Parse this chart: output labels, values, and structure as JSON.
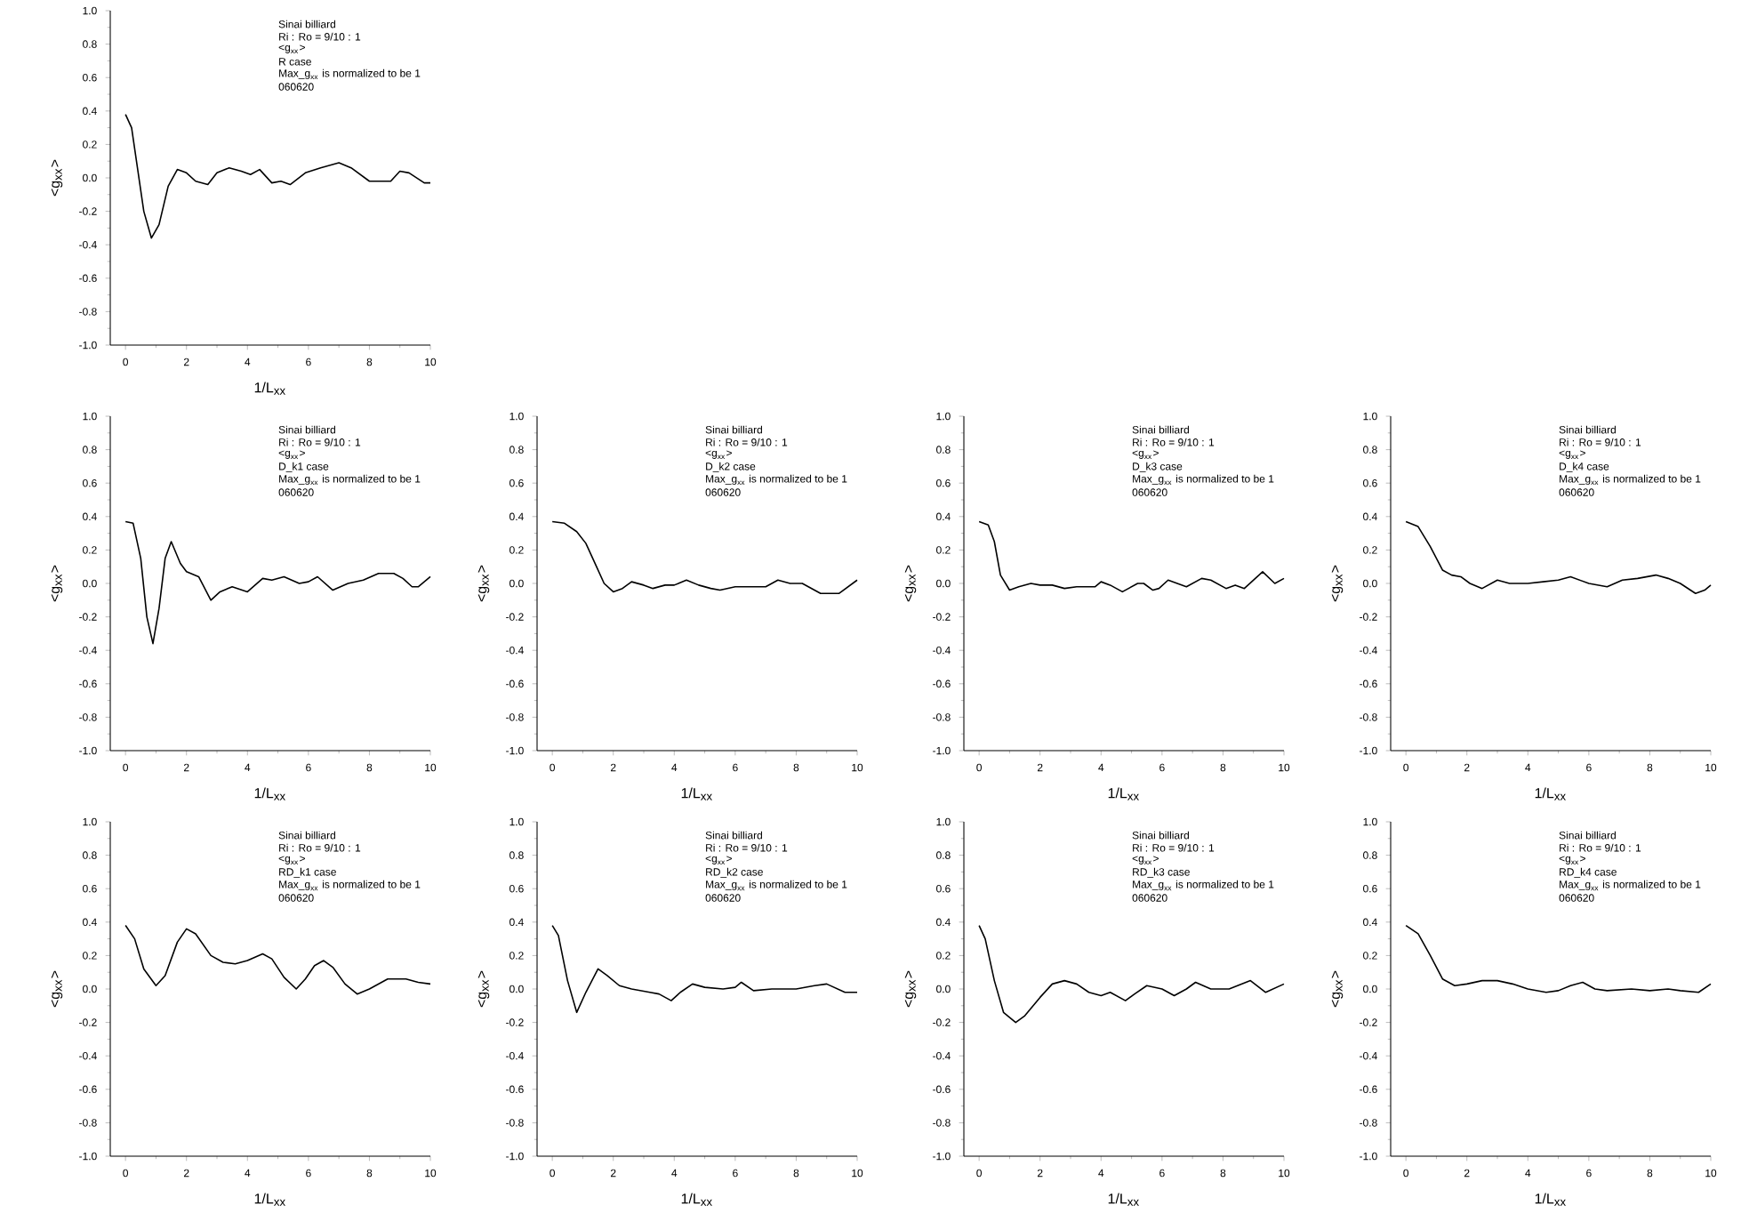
{
  "chart_data": [
    {
      "type": "line",
      "xlabel": "1/L$_{xx}$",
      "ylabel": "<g$_{xx}$>",
      "annotations": [
        "Sinai billiard",
        "Ri : Ro = 9/10 : 1",
        "<g$_{xx}$>",
        "R case",
        "Max_g$_{xx}$ is normalized to be 1",
        "060620"
      ],
      "xlim": [
        -0.5,
        10
      ],
      "ylim": [
        -1,
        1
      ],
      "xticks": [
        0,
        2,
        4,
        6,
        8,
        10
      ],
      "yticks": [
        {
          "value": -1,
          "label": "-1.0"
        },
        {
          "value": -0.8,
          "label": "-0.8"
        },
        {
          "value": -0.6,
          "label": "-0.6"
        },
        {
          "value": -0.4,
          "label": "-0.4"
        },
        {
          "value": -0.2,
          "label": "-0.2"
        },
        {
          "value": 0,
          "label": "0.0"
        },
        {
          "value": 0.2,
          "label": "0.2"
        },
        {
          "value": 0.4,
          "label": "0.4"
        },
        {
          "value": 0.6,
          "label": "0.6"
        },
        {
          "value": 0.8,
          "label": "0.8"
        },
        {
          "value": 1,
          "label": "1.0"
        }
      ],
      "series": [
        {
          "color": "#000000",
          "x": [
            0,
            0.2,
            0.4,
            0.6,
            0.85,
            1.1,
            1.4,
            1.7,
            2.0,
            2.3,
            2.7,
            3.0,
            3.4,
            3.8,
            4.1,
            4.4,
            4.8,
            5.1,
            5.4,
            5.9,
            6.4,
            7.0,
            7.4,
            8.0,
            8.4,
            8.7,
            9.0,
            9.3,
            9.8,
            10
          ],
          "values": [
            0.38,
            0.3,
            0.05,
            -0.2,
            -0.36,
            -0.28,
            -0.05,
            0.05,
            0.03,
            -0.02,
            -0.04,
            0.03,
            0.06,
            0.04,
            0.02,
            0.05,
            -0.03,
            -0.02,
            -0.04,
            0.03,
            0.06,
            0.09,
            0.06,
            -0.02,
            -0.02,
            -0.02,
            0.04,
            0.03,
            -0.03,
            -0.03
          ]
        }
      ]
    },
    {
      "type": "line",
      "xlabel": "1/L$_{xx}$",
      "ylabel": "<g$_{xx}$>",
      "annotations": [
        "Sinai billiard",
        "Ri : Ro = 9/10 : 1",
        "<g$_{xx}$>",
        "D_k1 case",
        "Max_g$_{xx}$ is normalized to be 1",
        "060620"
      ],
      "xlim": [
        -0.5,
        10
      ],
      "ylim": [
        -1,
        1
      ],
      "xticks": [
        0,
        2,
        4,
        6,
        8,
        10
      ],
      "yticks": [
        {
          "value": -1,
          "label": "-1.0"
        },
        {
          "value": -0.8,
          "label": "-0.8"
        },
        {
          "value": -0.6,
          "label": "-0.6"
        },
        {
          "value": -0.4,
          "label": "-0.4"
        },
        {
          "value": -0.2,
          "label": "-0.2"
        },
        {
          "value": 0,
          "label": "0.0"
        },
        {
          "value": 0.2,
          "label": "0.2"
        },
        {
          "value": 0.4,
          "label": "0.4"
        },
        {
          "value": 0.6,
          "label": "0.6"
        },
        {
          "value": 0.8,
          "label": "0.8"
        },
        {
          "value": 1,
          "label": "1.0"
        }
      ],
      "series": [
        {
          "color": "#000000",
          "x": [
            0,
            0.25,
            0.5,
            0.7,
            0.9,
            1.1,
            1.3,
            1.5,
            1.8,
            2.0,
            2.4,
            2.8,
            3.1,
            3.5,
            4.0,
            4.5,
            4.8,
            5.2,
            5.7,
            6.0,
            6.3,
            6.8,
            7.3,
            7.8,
            8.3,
            8.8,
            9.1,
            9.4,
            9.6,
            10
          ],
          "values": [
            0.37,
            0.36,
            0.15,
            -0.2,
            -0.36,
            -0.15,
            0.15,
            0.25,
            0.12,
            0.07,
            0.04,
            -0.1,
            -0.05,
            -0.02,
            -0.05,
            0.03,
            0.02,
            0.04,
            0.0,
            0.01,
            0.04,
            -0.04,
            0.0,
            0.02,
            0.06,
            0.06,
            0.03,
            -0.02,
            -0.02,
            0.04
          ]
        }
      ]
    },
    {
      "type": "line",
      "xlabel": "1/L$_{xx}$",
      "ylabel": "<g$_{xx}$>",
      "annotations": [
        "Sinai billiard",
        "Ri : Ro = 9/10 : 1",
        "<g$_{xx}$>",
        "D_k2 case",
        "Max_g$_{xx}$ is normalized to be 1",
        "060620"
      ],
      "xlim": [
        -0.5,
        10
      ],
      "ylim": [
        -1,
        1
      ],
      "xticks": [
        0,
        2,
        4,
        6,
        8,
        10
      ],
      "yticks": [
        {
          "value": -1,
          "label": "-1.0"
        },
        {
          "value": -0.8,
          "label": "-0.8"
        },
        {
          "value": -0.6,
          "label": "-0.6"
        },
        {
          "value": -0.4,
          "label": "-0.4"
        },
        {
          "value": -0.2,
          "label": "-0.2"
        },
        {
          "value": 0,
          "label": "0.0"
        },
        {
          "value": 0.2,
          "label": "0.2"
        },
        {
          "value": 0.4,
          "label": "0.4"
        },
        {
          "value": 0.6,
          "label": "0.6"
        },
        {
          "value": 0.8,
          "label": "0.8"
        },
        {
          "value": 1,
          "label": "1.0"
        }
      ],
      "series": [
        {
          "color": "#000000",
          "x": [
            0,
            0.4,
            0.8,
            1.1,
            1.4,
            1.7,
            2.0,
            2.3,
            2.6,
            3.0,
            3.3,
            3.7,
            4.0,
            4.4,
            4.8,
            5.2,
            5.5,
            6.0,
            6.5,
            7.0,
            7.4,
            7.8,
            8.2,
            8.8,
            9.4,
            10
          ],
          "values": [
            0.37,
            0.36,
            0.31,
            0.24,
            0.12,
            0.0,
            -0.05,
            -0.03,
            0.01,
            -0.01,
            -0.03,
            -0.01,
            -0.01,
            0.02,
            -0.01,
            -0.03,
            -0.04,
            -0.02,
            -0.02,
            -0.02,
            0.02,
            0.0,
            0.0,
            -0.06,
            -0.06,
            0.02
          ]
        }
      ]
    },
    {
      "type": "line",
      "xlabel": "1/L$_{xx}$",
      "ylabel": "<g$_{xx}$>",
      "annotations": [
        "Sinai billiard",
        "Ri : Ro = 9/10 : 1",
        "<g$_{xx}$>",
        "D_k3 case",
        "Max_g$_{xx}$ is normalized to be 1",
        "060620"
      ],
      "xlim": [
        -0.5,
        10
      ],
      "ylim": [
        -1,
        1
      ],
      "xticks": [
        0,
        2,
        4,
        6,
        8,
        10
      ],
      "yticks": [
        {
          "value": -1,
          "label": "-1.0"
        },
        {
          "value": -0.8,
          "label": "-0.8"
        },
        {
          "value": -0.6,
          "label": "-0.6"
        },
        {
          "value": -0.4,
          "label": "-0.4"
        },
        {
          "value": -0.2,
          "label": "-0.2"
        },
        {
          "value": 0,
          "label": "0.0"
        },
        {
          "value": 0.2,
          "label": "0.2"
        },
        {
          "value": 0.4,
          "label": "0.4"
        },
        {
          "value": 0.6,
          "label": "0.6"
        },
        {
          "value": 0.8,
          "label": "0.8"
        },
        {
          "value": 1,
          "label": "1.0"
        }
      ],
      "series": [
        {
          "color": "#000000",
          "x": [
            0,
            0.3,
            0.5,
            0.7,
            1.0,
            1.3,
            1.7,
            2.0,
            2.4,
            2.8,
            3.2,
            3.8,
            4.0,
            4.3,
            4.7,
            5.2,
            5.4,
            5.7,
            5.9,
            6.2,
            6.5,
            6.8,
            7.3,
            7.6,
            8.1,
            8.4,
            8.7,
            9.3,
            9.7,
            10
          ],
          "values": [
            0.37,
            0.35,
            0.25,
            0.05,
            -0.04,
            -0.02,
            0.0,
            -0.01,
            -0.01,
            -0.03,
            -0.02,
            -0.02,
            0.01,
            -0.01,
            -0.05,
            0.0,
            0.0,
            -0.04,
            -0.03,
            0.02,
            0.0,
            -0.02,
            0.03,
            0.02,
            -0.03,
            -0.01,
            -0.03,
            0.07,
            0.0,
            0.03
          ]
        }
      ]
    },
    {
      "type": "line",
      "xlabel": "1/L$_{xx}$",
      "ylabel": "<g$_{xx}$>",
      "annotations": [
        "Sinai billiard",
        "Ri : Ro = 9/10 : 1",
        "<g$_{xx}$>",
        "D_k4 case",
        "Max_g$_{xx}$ is normalized to be 1",
        "060620"
      ],
      "xlim": [
        -0.5,
        10
      ],
      "ylim": [
        -1,
        1
      ],
      "xticks": [
        0,
        2,
        4,
        6,
        8,
        10
      ],
      "yticks": [
        {
          "value": -1,
          "label": "-1.0"
        },
        {
          "value": -0.8,
          "label": "-0.8"
        },
        {
          "value": -0.6,
          "label": "-0.6"
        },
        {
          "value": -0.4,
          "label": "-0.4"
        },
        {
          "value": -0.2,
          "label": "-0.2"
        },
        {
          "value": 0,
          "label": "0.0"
        },
        {
          "value": 0.2,
          "label": "0.2"
        },
        {
          "value": 0.4,
          "label": "0.4"
        },
        {
          "value": 0.6,
          "label": "0.6"
        },
        {
          "value": 0.8,
          "label": "0.8"
        },
        {
          "value": 1,
          "label": "1.0"
        }
      ],
      "series": [
        {
          "color": "#000000",
          "x": [
            0,
            0.4,
            0.8,
            1.2,
            1.5,
            1.8,
            2.1,
            2.5,
            3.0,
            3.4,
            4.0,
            4.5,
            5.0,
            5.4,
            6.0,
            6.6,
            7.1,
            7.6,
            8.2,
            8.6,
            9.0,
            9.5,
            9.8,
            10
          ],
          "values": [
            0.37,
            0.34,
            0.22,
            0.08,
            0.05,
            0.04,
            0.0,
            -0.03,
            0.02,
            0.0,
            0.0,
            0.01,
            0.02,
            0.04,
            0.0,
            -0.02,
            0.02,
            0.03,
            0.05,
            0.03,
            0.0,
            -0.06,
            -0.04,
            -0.01
          ]
        }
      ]
    },
    {
      "type": "line",
      "xlabel": "1/L$_{xx}$",
      "ylabel": "<g$_{xx}$>",
      "annotations": [
        "Sinai billiard",
        "Ri : Ro = 9/10 : 1",
        "<g$_{xx}$>",
        "RD_k1 case",
        "Max_g$_{xx}$ is normalized to be 1",
        "060620"
      ],
      "xlim": [
        -0.5,
        10
      ],
      "ylim": [
        -1,
        1
      ],
      "xticks": [
        0,
        2,
        4,
        6,
        8,
        10
      ],
      "yticks": [
        {
          "value": -1,
          "label": "-1.0"
        },
        {
          "value": -0.8,
          "label": "-0.8"
        },
        {
          "value": -0.6,
          "label": "-0.6"
        },
        {
          "value": -0.4,
          "label": "-0.4"
        },
        {
          "value": -0.2,
          "label": "-0.2"
        },
        {
          "value": 0,
          "label": "0.0"
        },
        {
          "value": 0.2,
          "label": "0.2"
        },
        {
          "value": 0.4,
          "label": "0.4"
        },
        {
          "value": 0.6,
          "label": "0.6"
        },
        {
          "value": 0.8,
          "label": "0.8"
        },
        {
          "value": 1,
          "label": "1.0"
        }
      ],
      "series": [
        {
          "color": "#000000",
          "x": [
            0,
            0.3,
            0.6,
            1.0,
            1.3,
            1.7,
            2.0,
            2.3,
            2.8,
            3.2,
            3.6,
            4.0,
            4.5,
            4.8,
            5.2,
            5.6,
            5.9,
            6.2,
            6.5,
            6.8,
            7.2,
            7.6,
            8.0,
            8.6,
            9.2,
            9.6,
            10
          ],
          "values": [
            0.38,
            0.3,
            0.12,
            0.02,
            0.08,
            0.28,
            0.36,
            0.33,
            0.2,
            0.16,
            0.15,
            0.17,
            0.21,
            0.18,
            0.07,
            0.0,
            0.06,
            0.14,
            0.17,
            0.13,
            0.03,
            -0.03,
            0.0,
            0.06,
            0.06,
            0.04,
            0.03
          ]
        }
      ]
    },
    {
      "type": "line",
      "xlabel": "1/L$_{xx}$",
      "ylabel": "<g$_{xx}$>",
      "annotations": [
        "Sinai billiard",
        "Ri : Ro = 9/10 : 1",
        "<g$_{xx}$>",
        "RD_k2 case",
        "Max_g$_{xx}$ is normalized to be 1",
        "060620"
      ],
      "xlim": [
        -0.5,
        10
      ],
      "ylim": [
        -1,
        1
      ],
      "xticks": [
        0,
        2,
        4,
        6,
        8,
        10
      ],
      "yticks": [
        {
          "value": -1,
          "label": "-1.0"
        },
        {
          "value": -0.8,
          "label": "-0.8"
        },
        {
          "value": -0.6,
          "label": "-0.6"
        },
        {
          "value": -0.4,
          "label": "-0.4"
        },
        {
          "value": -0.2,
          "label": "-0.2"
        },
        {
          "value": 0,
          "label": "0.0"
        },
        {
          "value": 0.2,
          "label": "0.2"
        },
        {
          "value": 0.4,
          "label": "0.4"
        },
        {
          "value": 0.6,
          "label": "0.6"
        },
        {
          "value": 0.8,
          "label": "0.8"
        },
        {
          "value": 1,
          "label": "1.0"
        }
      ],
      "series": [
        {
          "color": "#000000",
          "x": [
            0,
            0.2,
            0.5,
            0.8,
            1.1,
            1.5,
            1.8,
            2.2,
            2.6,
            3.2,
            3.5,
            3.9,
            4.2,
            4.6,
            5.0,
            5.6,
            6.0,
            6.2,
            6.6,
            7.2,
            8.0,
            8.6,
            9.0,
            9.6,
            10
          ],
          "values": [
            0.38,
            0.32,
            0.05,
            -0.14,
            -0.02,
            0.12,
            0.08,
            0.02,
            0.0,
            -0.02,
            -0.03,
            -0.07,
            -0.02,
            0.03,
            0.01,
            0.0,
            0.01,
            0.04,
            -0.01,
            0.0,
            0.0,
            0.02,
            0.03,
            -0.02,
            -0.02
          ]
        }
      ]
    },
    {
      "type": "line",
      "xlabel": "1/L$_{xx}$",
      "ylabel": "<g$_{xx}$>",
      "annotations": [
        "Sinai billiard",
        "Ri : Ro = 9/10 : 1",
        "<g$_{xx}$>",
        "RD_k3 case",
        "Max_g$_{xx}$ is normalized to be 1",
        "060620"
      ],
      "xlim": [
        -0.5,
        10
      ],
      "ylim": [
        -1,
        1
      ],
      "xticks": [
        0,
        2,
        4,
        6,
        8,
        10
      ],
      "yticks": [
        {
          "value": -1,
          "label": "-1.0"
        },
        {
          "value": -0.8,
          "label": "-0.8"
        },
        {
          "value": -0.6,
          "label": "-0.6"
        },
        {
          "value": -0.4,
          "label": "-0.4"
        },
        {
          "value": -0.2,
          "label": "-0.2"
        },
        {
          "value": 0,
          "label": "0.0"
        },
        {
          "value": 0.2,
          "label": "0.2"
        },
        {
          "value": 0.4,
          "label": "0.4"
        },
        {
          "value": 0.6,
          "label": "0.6"
        },
        {
          "value": 0.8,
          "label": "0.8"
        },
        {
          "value": 1,
          "label": "1.0"
        }
      ],
      "series": [
        {
          "color": "#000000",
          "x": [
            0,
            0.2,
            0.5,
            0.8,
            1.2,
            1.5,
            2.0,
            2.4,
            2.8,
            3.2,
            3.6,
            4.0,
            4.3,
            4.8,
            5.1,
            5.5,
            6.0,
            6.4,
            6.8,
            7.1,
            7.6,
            8.2,
            8.9,
            9.4,
            10
          ],
          "values": [
            0.38,
            0.3,
            0.05,
            -0.14,
            -0.2,
            -0.16,
            -0.05,
            0.03,
            0.05,
            0.03,
            -0.02,
            -0.04,
            -0.02,
            -0.07,
            -0.03,
            0.02,
            0.0,
            -0.04,
            0.0,
            0.04,
            0.0,
            0.0,
            0.05,
            -0.02,
            0.03
          ]
        }
      ]
    },
    {
      "type": "line",
      "xlabel": "1/L$_{xx}$",
      "ylabel": "<g$_{xx}$>",
      "annotations": [
        "Sinai billiard",
        "Ri : Ro = 9/10 : 1",
        "<g$_{xx}$>",
        "RD_k4 case",
        "Max_g$_{xx}$ is normalized to be 1",
        "060620"
      ],
      "xlim": [
        -0.5,
        10
      ],
      "ylim": [
        -1,
        1
      ],
      "xticks": [
        0,
        2,
        4,
        6,
        8,
        10
      ],
      "yticks": [
        {
          "value": -1,
          "label": "-1.0"
        },
        {
          "value": -0.8,
          "label": "-0.8"
        },
        {
          "value": -0.6,
          "label": "-0.6"
        },
        {
          "value": -0.4,
          "label": "-0.4"
        },
        {
          "value": -0.2,
          "label": "-0.2"
        },
        {
          "value": 0,
          "label": "0.0"
        },
        {
          "value": 0.2,
          "label": "0.2"
        },
        {
          "value": 0.4,
          "label": "0.4"
        },
        {
          "value": 0.6,
          "label": "0.6"
        },
        {
          "value": 0.8,
          "label": "0.8"
        },
        {
          "value": 1,
          "label": "1.0"
        }
      ],
      "series": [
        {
          "color": "#000000",
          "x": [
            0,
            0.4,
            0.8,
            1.2,
            1.6,
            2.0,
            2.5,
            3.0,
            3.5,
            4.0,
            4.6,
            5.0,
            5.4,
            5.8,
            6.2,
            6.6,
            7.4,
            8.0,
            8.6,
            9.0,
            9.6,
            10
          ],
          "values": [
            0.38,
            0.33,
            0.2,
            0.06,
            0.02,
            0.03,
            0.05,
            0.05,
            0.03,
            0.0,
            -0.02,
            -0.01,
            0.02,
            0.04,
            0.0,
            -0.01,
            0.0,
            -0.01,
            0.0,
            -0.01,
            -0.02,
            0.03
          ]
        }
      ]
    }
  ]
}
